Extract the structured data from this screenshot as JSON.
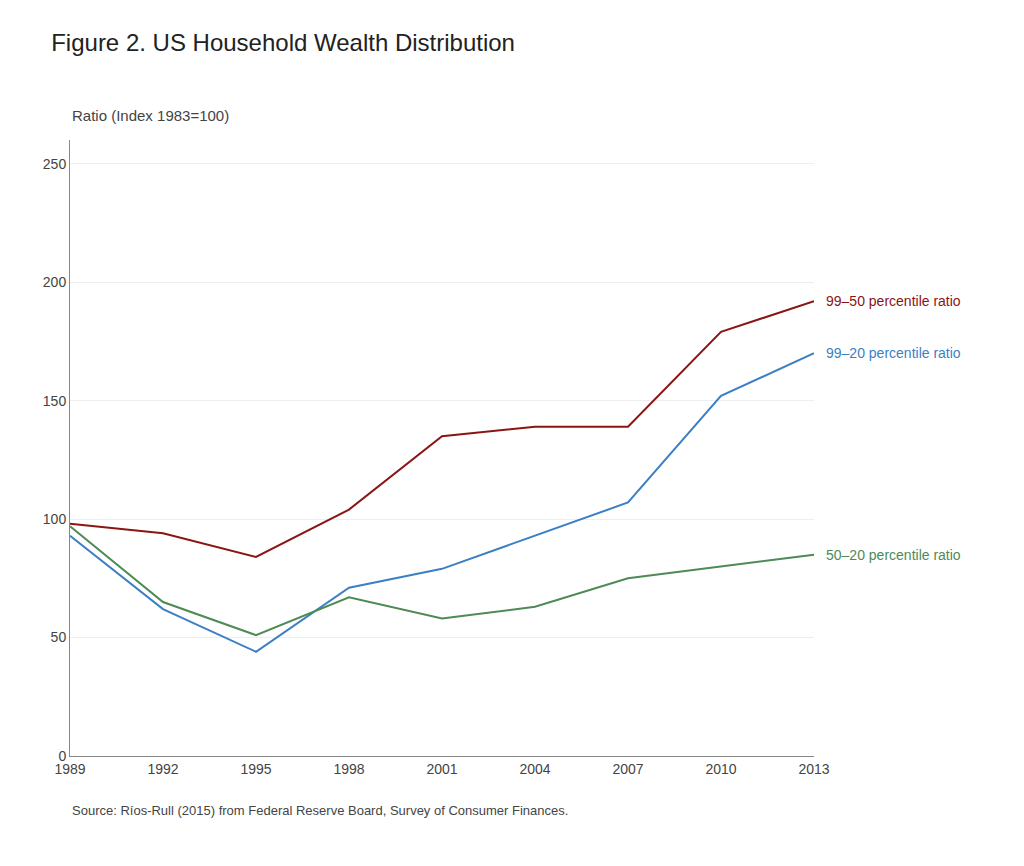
{
  "chart_data": {
    "type": "line",
    "title": "Figure 2. US Household Wealth Distribution",
    "ylabel": "Ratio (Index 1983=100)",
    "annotations": [
      "Source: Ríos-Rull (2015) from Federal Reserve Board, Survey of Consumer Finances."
    ],
    "x": [
      1989,
      1992,
      1995,
      1998,
      2001,
      2004,
      2007,
      2010,
      2013
    ],
    "series": [
      {
        "name": "99–50 percentile ratio",
        "color": "#8B1515",
        "values": [
          98,
          94,
          84,
          104,
          135,
          139,
          139,
          179,
          192
        ]
      },
      {
        "name": "99–20 percentile ratio",
        "color": "#3B7FC4",
        "values": [
          93,
          62,
          44,
          71,
          79,
          93,
          107,
          152,
          170
        ]
      },
      {
        "name": "50–20 percentile ratio",
        "color": "#4E8A55",
        "values": [
          97,
          65,
          51,
          67,
          58,
          63,
          75,
          80,
          85
        ]
      }
    ],
    "xlim": [
      1989,
      2013
    ],
    "xticks": [
      1989,
      1992,
      1995,
      1998,
      2001,
      2004,
      2007,
      2010,
      2013
    ],
    "ylim": [
      0,
      260
    ],
    "yticks": [
      0,
      50,
      100,
      150,
      200,
      250
    ],
    "grid": "y"
  }
}
